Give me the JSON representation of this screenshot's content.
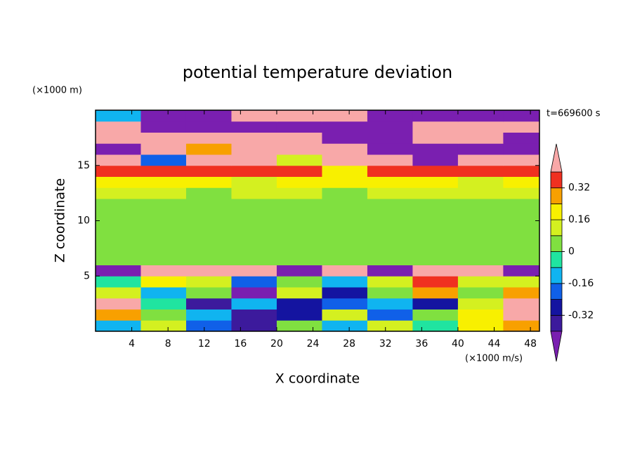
{
  "chart_data": {
    "type": "contour",
    "title": "potential temperature deviation",
    "x_label": "X coordinate",
    "y_label": "Z coordinate",
    "x_unit": "(×1000 m/s)",
    "y_unit": "(×1000 m)",
    "time_label": "t=669600 s",
    "xlim": [
      0,
      49
    ],
    "ylim": [
      0,
      20
    ],
    "xticks": [
      4,
      8,
      12,
      16,
      20,
      24,
      28,
      32,
      36,
      40,
      44,
      48
    ],
    "yticks": [
      5,
      10,
      15
    ],
    "x_edges": [
      0,
      5,
      10,
      15,
      20,
      25,
      30,
      35,
      40,
      45,
      49
    ],
    "z_edges": [
      0,
      1,
      2,
      3,
      4,
      5,
      6,
      8,
      10,
      12,
      13,
      14,
      15,
      16,
      17,
      18,
      19,
      20
    ],
    "values": [
      [
        -0.1,
        0.1,
        -0.2,
        -0.35,
        0.05,
        -0.1,
        0.1,
        -0.05,
        0.2,
        0.3
      ],
      [
        0.3,
        0.05,
        -0.1,
        -0.35,
        -0.3,
        0.15,
        -0.2,
        0.05,
        0.2,
        0.45
      ],
      [
        0.45,
        -0.05,
        -0.35,
        -0.1,
        -0.3,
        -0.2,
        -0.1,
        -0.3,
        0.15,
        0.45
      ],
      [
        0.1,
        -0.1,
        0.05,
        -0.45,
        0.1,
        -0.25,
        0.05,
        0.3,
        0.05,
        0.3
      ],
      [
        -0.05,
        0.2,
        0.1,
        -0.2,
        0.05,
        -0.15,
        0.1,
        0.35,
        0.1,
        0.1
      ],
      [
        -0.45,
        0.45,
        0.45,
        0.45,
        -0.45,
        0.45,
        -0.45,
        0.45,
        0.45,
        -0.45
      ],
      [
        0.05,
        0.02,
        0.05,
        0.05,
        0.02,
        0.05,
        0.05,
        0.02,
        0.05,
        0.05
      ],
      [
        0.05,
        0.05,
        0.02,
        0.05,
        0.05,
        0.05,
        0.02,
        0.05,
        0.05,
        0.02
      ],
      [
        0.06,
        0.06,
        0.06,
        0.02,
        0.06,
        0.06,
        0.06,
        0.06,
        0.02,
        0.06
      ],
      [
        0.12,
        0.12,
        0.06,
        0.12,
        0.12,
        0.06,
        0.12,
        0.12,
        0.12,
        0.12
      ],
      [
        0.2,
        0.2,
        0.2,
        0.12,
        0.2,
        0.2,
        0.2,
        0.2,
        0.12,
        0.2
      ],
      [
        0.35,
        0.35,
        0.35,
        0.35,
        0.35,
        0.2,
        0.35,
        0.35,
        0.35,
        0.35
      ],
      [
        0.45,
        -0.2,
        0.45,
        0.45,
        0.1,
        0.45,
        0.45,
        -0.45,
        0.45,
        0.45
      ],
      [
        -0.45,
        0.45,
        0.3,
        0.45,
        0.45,
        0.45,
        -0.45,
        -0.45,
        -0.45,
        -0.45
      ],
      [
        0.45,
        0.45,
        0.45,
        0.45,
        0.45,
        -0.45,
        -0.45,
        0.45,
        0.45,
        -0.45
      ],
      [
        0.45,
        -0.45,
        -0.45,
        -0.45,
        -0.45,
        -0.45,
        -0.45,
        0.45,
        0.45,
        0.45
      ],
      [
        -0.1,
        -0.45,
        -0.45,
        0.45,
        0.45,
        0.45,
        -0.45,
        -0.45,
        -0.45,
        -0.45
      ]
    ],
    "levels": [
      -0.4,
      -0.32,
      -0.24,
      -0.16,
      -0.08,
      0,
      0.08,
      0.16,
      0.24,
      0.32,
      0.4
    ],
    "colors": [
      "#7a1fb0",
      "#3c1a9c",
      "#1414a0",
      "#1060e8",
      "#10b4f0",
      "#20e4a0",
      "#80e040",
      "#d4f020",
      "#f8f000",
      "#f8a000",
      "#f03020",
      "#f8a8a8"
    ],
    "colorbar_ticks": [
      -0.32,
      -0.16,
      0,
      0.16,
      0.32
    ]
  }
}
